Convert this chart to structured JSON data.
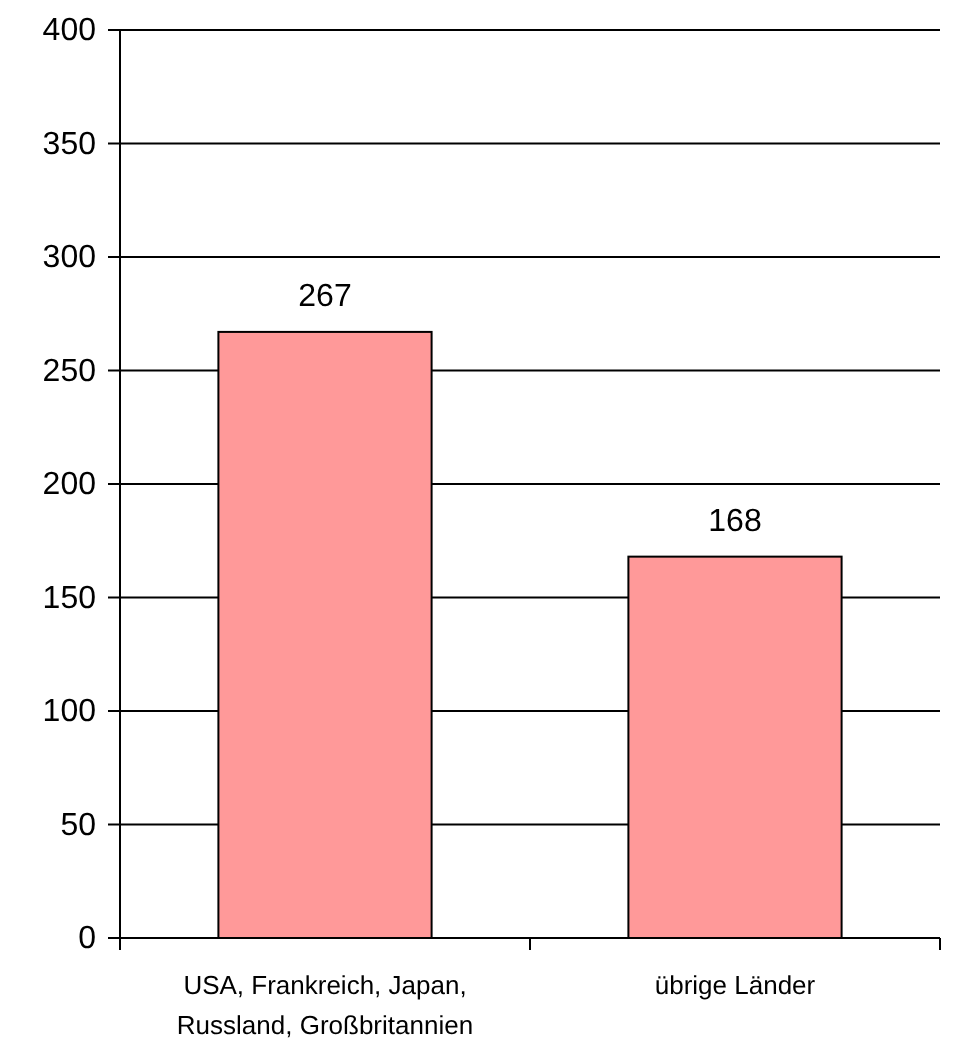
{
  "chart_data": {
    "type": "bar",
    "categories": [
      "USA, Frankreich, Japan, Russland, Großbritannien",
      "übrige Länder"
    ],
    "values": [
      267,
      168
    ],
    "color": "#ff9999",
    "ylim": [
      0,
      400
    ],
    "yticks": [
      0,
      50,
      100,
      150,
      200,
      250,
      300,
      350,
      400
    ],
    "grid": "y",
    "data_labels": true
  }
}
